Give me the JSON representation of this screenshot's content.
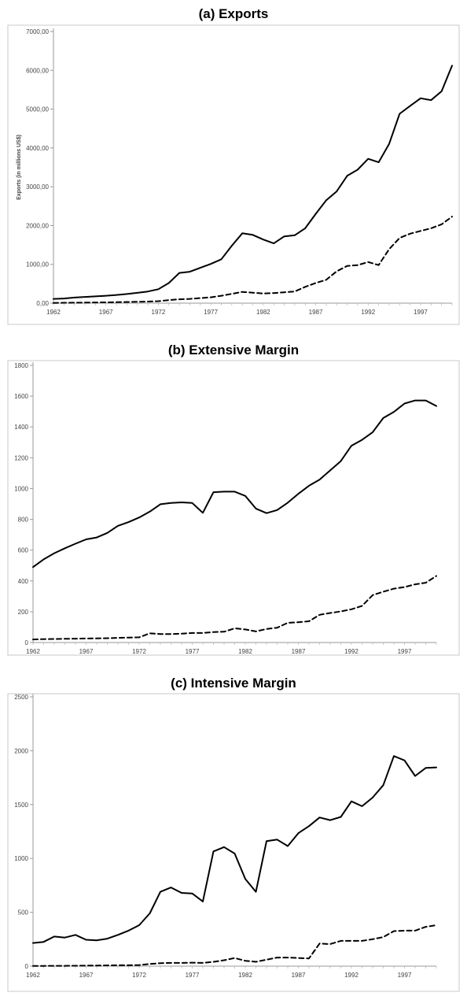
{
  "chart_data": [
    {
      "type": "line",
      "title": "(a) Exports",
      "ylabel": "Exports (in millions US$)",
      "xlabel": "",
      "ylim": [
        0,
        7000
      ],
      "yticks": [
        "0,00",
        "1000,00",
        "2000,00",
        "3000,00",
        "4000,00",
        "5000,00",
        "6000,00",
        "7000,00"
      ],
      "ytick_values": [
        0,
        1000,
        2000,
        3000,
        4000,
        5000,
        6000,
        7000
      ],
      "xticks": [
        "1962",
        "1967",
        "1972",
        "1977",
        "1982",
        "1987",
        "1992",
        "1997"
      ],
      "xtick_values": [
        1962,
        1967,
        1972,
        1977,
        1982,
        1987,
        1992,
        1997
      ],
      "x": [
        1962,
        1963,
        1964,
        1965,
        1966,
        1967,
        1968,
        1969,
        1970,
        1971,
        1972,
        1973,
        1974,
        1975,
        1976,
        1977,
        1978,
        1979,
        1980,
        1981,
        1982,
        1983,
        1984,
        1985,
        1986,
        1987,
        1988,
        1989,
        1990,
        1991,
        1992,
        1993,
        1994,
        1995,
        1996,
        1997,
        1998,
        1999,
        2000
      ],
      "grid": false,
      "series": [
        {
          "style": "solid",
          "values": [
            110,
            120,
            145,
            160,
            175,
            190,
            210,
            235,
            265,
            300,
            360,
            520,
            780,
            810,
            910,
            1010,
            1130,
            1480,
            1800,
            1760,
            1640,
            1540,
            1720,
            1750,
            1930,
            2300,
            2650,
            2880,
            3280,
            3440,
            3720,
            3630,
            4100,
            4880,
            5080,
            5280,
            5230,
            5460,
            6120
          ]
        },
        {
          "style": "dashed",
          "values": [
            5,
            10,
            12,
            15,
            18,
            20,
            25,
            30,
            35,
            40,
            50,
            80,
            100,
            110,
            130,
            150,
            190,
            240,
            290,
            270,
            250,
            260,
            280,
            300,
            420,
            520,
            600,
            820,
            960,
            980,
            1060,
            980,
            1390,
            1680,
            1790,
            1860,
            1930,
            2030,
            2230
          ]
        }
      ]
    },
    {
      "type": "line",
      "title": "(b) Extensive Margin",
      "xlabel": "",
      "ylabel": "",
      "ylim": [
        0,
        1800
      ],
      "yticks": [
        "0",
        "200",
        "400",
        "600",
        "800",
        "1000",
        "1200",
        "1400",
        "1600",
        "1800"
      ],
      "ytick_values": [
        0,
        200,
        400,
        600,
        800,
        1000,
        1200,
        1400,
        1600,
        1800
      ],
      "xticks": [
        "1962",
        "1967",
        "1972",
        "1977",
        "1982",
        "1987",
        "1992",
        "1997"
      ],
      "xtick_values": [
        1962,
        1967,
        1972,
        1977,
        1982,
        1987,
        1992,
        1997
      ],
      "x": [
        1962,
        1963,
        1964,
        1965,
        1966,
        1967,
        1968,
        1969,
        1970,
        1971,
        1972,
        1973,
        1974,
        1975,
        1976,
        1977,
        1978,
        1979,
        1980,
        1981,
        1982,
        1983,
        1984,
        1985,
        1986,
        1987,
        1988,
        1989,
        1990,
        1991,
        1992,
        1993,
        1994,
        1995,
        1996,
        1997,
        1998,
        1999,
        2000
      ],
      "grid": false,
      "series": [
        {
          "style": "solid",
          "values": [
            490,
            540,
            580,
            612,
            642,
            670,
            682,
            712,
            758,
            782,
            812,
            850,
            898,
            906,
            910,
            906,
            842,
            976,
            980,
            980,
            952,
            870,
            840,
            860,
            908,
            966,
            1018,
            1058,
            1118,
            1178,
            1278,
            1316,
            1366,
            1458,
            1498,
            1552,
            1572,
            1572,
            1536
          ]
        },
        {
          "style": "dashed",
          "values": [
            20,
            22,
            23,
            24,
            25,
            26,
            27,
            28,
            30,
            32,
            34,
            60,
            55,
            55,
            58,
            62,
            62,
            68,
            70,
            92,
            85,
            72,
            88,
            96,
            128,
            132,
            138,
            180,
            192,
            202,
            216,
            238,
            308,
            330,
            350,
            360,
            378,
            388,
            432
          ]
        }
      ]
    },
    {
      "type": "line",
      "title": "(c) Intensive Margin",
      "xlabel": "",
      "ylabel": "",
      "ylim": [
        0,
        2500
      ],
      "yticks": [
        "0",
        "500",
        "1000",
        "1500",
        "2000",
        "2500"
      ],
      "ytick_values": [
        0,
        500,
        1000,
        1500,
        2000,
        2500
      ],
      "xticks": [
        "1962",
        "1967",
        "1972",
        "1977",
        "1982",
        "1987",
        "1992",
        "1997"
      ],
      "xtick_values": [
        1962,
        1967,
        1972,
        1977,
        1982,
        1987,
        1992,
        1997
      ],
      "x": [
        1962,
        1963,
        1964,
        1965,
        1966,
        1967,
        1968,
        1969,
        1970,
        1971,
        1972,
        1973,
        1974,
        1975,
        1976,
        1977,
        1978,
        1979,
        1980,
        1981,
        1982,
        1983,
        1984,
        1985,
        1986,
        1987,
        1988,
        1989,
        1990,
        1991,
        1992,
        1993,
        1994,
        1995,
        1996,
        1997,
        1998,
        1999,
        2000
      ],
      "grid": false,
      "series": [
        {
          "style": "solid",
          "values": [
            215,
            225,
            275,
            265,
            290,
            245,
            240,
            255,
            290,
            330,
            380,
            490,
            690,
            730,
            680,
            675,
            600,
            1065,
            1105,
            1045,
            810,
            690,
            1160,
            1175,
            1115,
            1235,
            1300,
            1380,
            1355,
            1385,
            1530,
            1485,
            1565,
            1680,
            1950,
            1910,
            1765,
            1840,
            1845
          ]
        },
        {
          "style": "dashed",
          "values": [
            2,
            2,
            3,
            3,
            4,
            5,
            6,
            7,
            8,
            8,
            10,
            20,
            28,
            30,
            30,
            32,
            30,
            40,
            55,
            75,
            50,
            40,
            60,
            80,
            80,
            75,
            72,
            210,
            205,
            235,
            235,
            235,
            250,
            270,
            325,
            330,
            330,
            365,
            380
          ]
        }
      ]
    }
  ]
}
